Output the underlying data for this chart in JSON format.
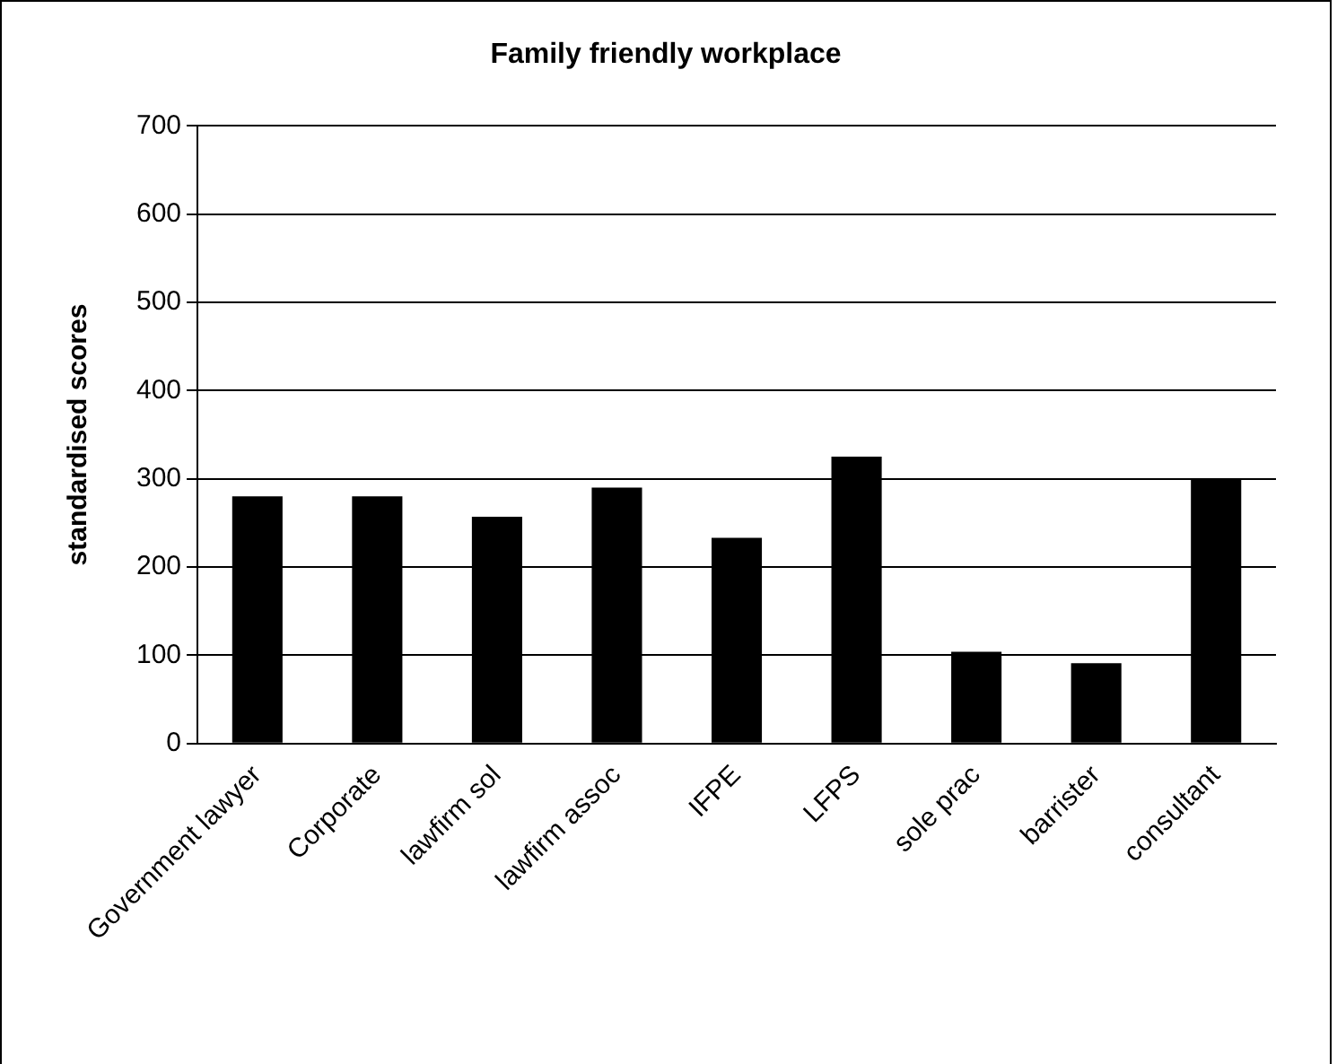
{
  "chart_data": {
    "type": "bar",
    "title": "Family friendly workplace",
    "ylabel": "standardised scores",
    "categories": [
      "Government lawyer",
      "Corporate",
      "lawfirm sol",
      "lawfirm assoc",
      "IFPE",
      "LFPS",
      "sole prac",
      "barrister",
      "consultant"
    ],
    "values": [
      280,
      280,
      257,
      290,
      233,
      325,
      104,
      91,
      300
    ],
    "color": "#000000",
    "ylim": [
      0,
      700
    ],
    "yticks": [
      0,
      100,
      200,
      300,
      400,
      500,
      600,
      700
    ],
    "grid": "y",
    "legend": false
  }
}
